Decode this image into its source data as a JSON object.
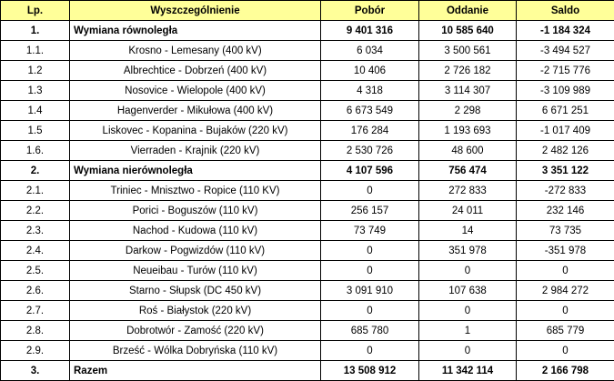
{
  "headers": [
    "Lp.",
    "Wyszczególnienie",
    "Pobór",
    "Oddanie",
    "Saldo"
  ],
  "rows": [
    {
      "lp": "1.",
      "desc": "Wymiana równoległa",
      "pobor": "9 401 316",
      "oddanie": "10 585 640",
      "saldo": "-1 184 324",
      "bold": true
    },
    {
      "lp": "1.1.",
      "desc": "Krosno - Lemesany (400 kV)",
      "pobor": "6 034",
      "oddanie": "3 500 561",
      "saldo": "-3 494 527",
      "bold": false
    },
    {
      "lp": "1.2",
      "desc": "Albrechtice - Dobrzeń (400 kV)",
      "pobor": "10 406",
      "oddanie": "2 726 182",
      "saldo": "-2 715 776",
      "bold": false
    },
    {
      "lp": "1.3",
      "desc": "Nosovice - Wielopole (400 kV)",
      "pobor": "4 318",
      "oddanie": "3 114 307",
      "saldo": "-3 109 989",
      "bold": false
    },
    {
      "lp": "1.4",
      "desc": "Hagenverder - Mikułowa (400 kV)",
      "pobor": "6 673 549",
      "oddanie": "2 298",
      "saldo": "6 671 251",
      "bold": false
    },
    {
      "lp": "1.5",
      "desc": "Liskovec - Kopanina - Bujaków (220 kV)",
      "pobor": "176 284",
      "oddanie": "1 193 693",
      "saldo": "-1 017 409",
      "bold": false
    },
    {
      "lp": "1.6.",
      "desc": "Vierraden - Krajnik (220 kV)",
      "pobor": "2 530 726",
      "oddanie": "48 600",
      "saldo": "2 482 126",
      "bold": false
    },
    {
      "lp": "2.",
      "desc": "Wymiana nierównoległa",
      "pobor": "4 107 596",
      "oddanie": "756 474",
      "saldo": "3 351 122",
      "bold": true
    },
    {
      "lp": "2.1.",
      "desc": "Triniec - Mnisztwo - Ropice (110 KV)",
      "pobor": "0",
      "oddanie": "272 833",
      "saldo": "-272 833",
      "bold": false
    },
    {
      "lp": "2.2.",
      "desc": "Porici - Boguszów (110 kV)",
      "pobor": "256 157",
      "oddanie": "24 011",
      "saldo": "232 146",
      "bold": false
    },
    {
      "lp": "2.3.",
      "desc": "Nachod - Kudowa (110 kV)",
      "pobor": "73 749",
      "oddanie": "14",
      "saldo": "73 735",
      "bold": false
    },
    {
      "lp": "2.4.",
      "desc": "Darkow - Pogwizdów (110 kV)",
      "pobor": "0",
      "oddanie": "351 978",
      "saldo": "-351 978",
      "bold": false
    },
    {
      "lp": "2.5.",
      "desc": "Neueibau - Turów (110 kV)",
      "pobor": "0",
      "oddanie": "0",
      "saldo": "0",
      "bold": false
    },
    {
      "lp": "2.6.",
      "desc": "Starno - Słupsk (DC 450 kV)",
      "pobor": "3 091 910",
      "oddanie": "107 638",
      "saldo": "2 984 272",
      "bold": false
    },
    {
      "lp": "2.7.",
      "desc": "Roś - Białystok (220 kV)",
      "pobor": "0",
      "oddanie": "0",
      "saldo": "0",
      "bold": false
    },
    {
      "lp": "2.8.",
      "desc": "Dobrotwór - Zamość (220 kV)",
      "pobor": "685 780",
      "oddanie": "1",
      "saldo": "685 779",
      "bold": false
    },
    {
      "lp": "2.9.",
      "desc": "Brześć - Wólka Dobryńska (110 kV)",
      "pobor": "0",
      "oddanie": "0",
      "saldo": "0",
      "bold": false
    },
    {
      "lp": "3.",
      "desc": "Razem",
      "pobor": "13 508 912",
      "oddanie": "11 342 114",
      "saldo": "2 166 798",
      "bold": true
    }
  ]
}
